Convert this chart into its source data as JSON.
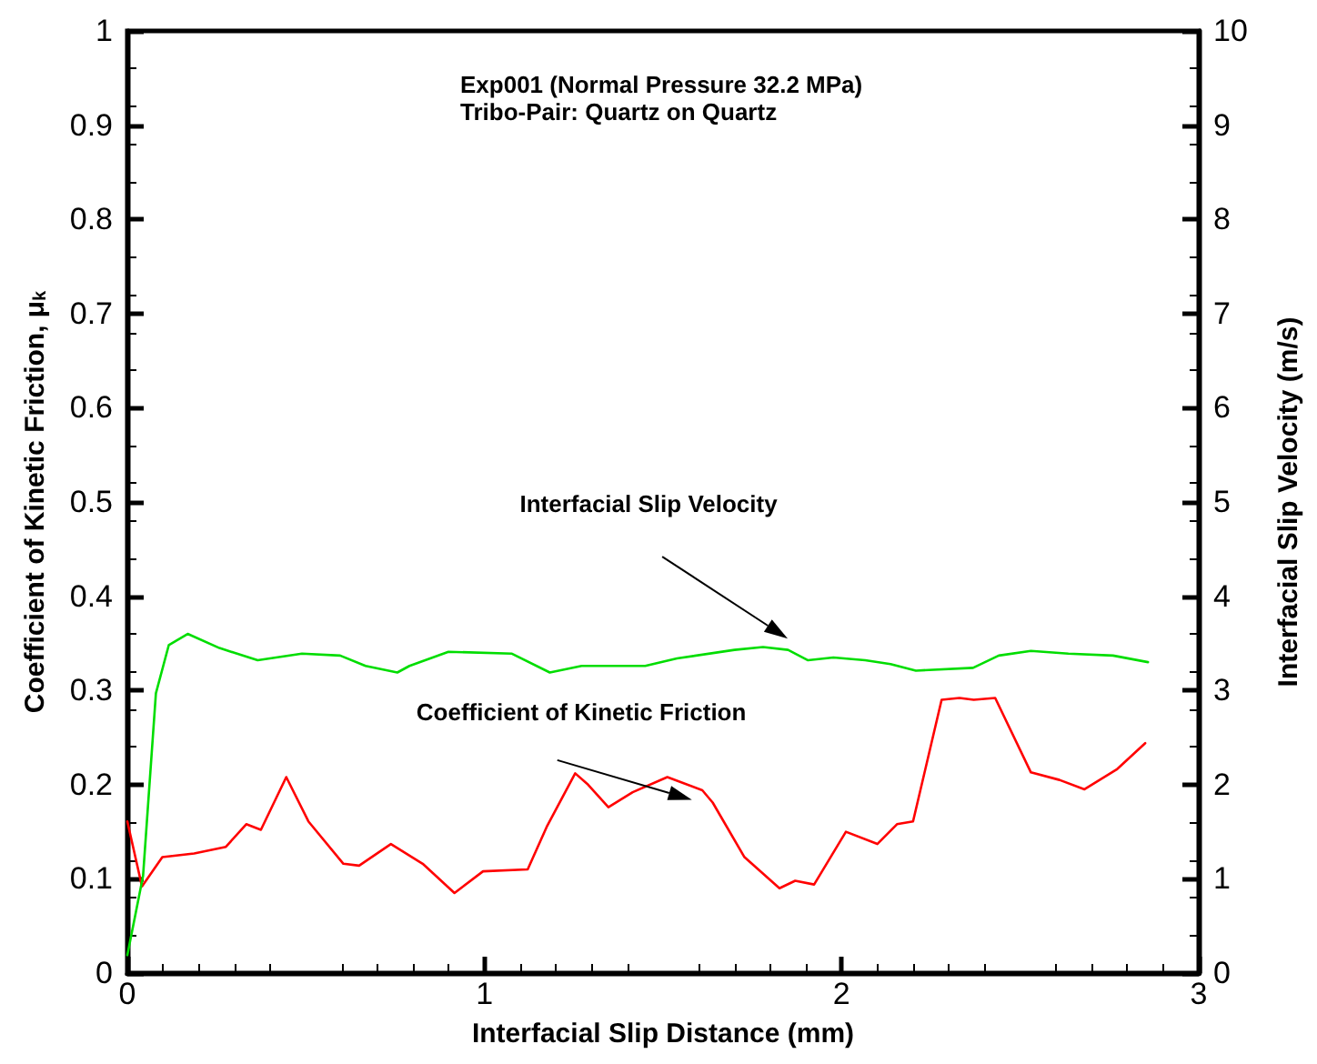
{
  "chart_data": {
    "type": "line",
    "title": "Exp001 (Normal Pressure 32.2 MPa)",
    "subtitle": "Tribo-Pair: Quartz on Quartz",
    "xlabel": "Interfacial Slip Distance (mm)",
    "ylabel": "Coefficient of Kinetic Friction, μ$_{k}$",
    "y2label": "Interfacial Slip Velocity (m/s)",
    "xlim": [
      0,
      3
    ],
    "xticks": [
      0,
      1,
      2,
      3
    ],
    "ylim": [
      0,
      1
    ],
    "yticks": [
      0,
      0.1,
      0.2,
      0.3,
      0.4,
      0.5,
      0.6,
      0.7,
      0.8,
      0.9,
      1
    ],
    "y2lim": [
      0,
      10
    ],
    "y2ticks": [
      0,
      1,
      2,
      3,
      4,
      5,
      6,
      7,
      8,
      9,
      10
    ],
    "grid": false,
    "marker": "none",
    "line_style": "solid",
    "annotations": [
      "Interfacial Slip Velocity",
      "Coefficient of Kinetic Friction"
    ],
    "series": [
      {
        "color": "#ff0000",
        "x": [
          0,
          0.041,
          0.098,
          0.187,
          0.276,
          0.333,
          0.374,
          0.445,
          0.507,
          0.605,
          0.649,
          0.738,
          0.827,
          0.916,
          0.996,
          1.121,
          1.174,
          1.254,
          1.29,
          1.347,
          1.415,
          1.512,
          1.61,
          1.639,
          1.728,
          1.826,
          1.87,
          1.923,
          2.012,
          2.1,
          2.155,
          2.2,
          2.28,
          2.33,
          2.37,
          2.43,
          2.53,
          2.61,
          2.68,
          2.77,
          2.85
        ],
        "values": [
          0.161,
          0.092,
          0.123,
          0.127,
          0.134,
          0.158,
          0.152,
          0.208,
          0.161,
          0.116,
          0.114,
          0.137,
          0.116,
          0.085,
          0.108,
          0.11,
          0.155,
          0.212,
          0.2,
          0.176,
          0.192,
          0.208,
          0.194,
          0.181,
          0.123,
          0.09,
          0.098,
          0.094,
          0.15,
          0.137,
          0.158,
          0.161,
          0.29,
          0.292,
          0.29,
          0.292,
          0.213,
          0.205,
          0.195,
          0.216,
          0.244
        ]
      },
      {
        "color": "#00dd00",
        "axis": "y2",
        "x": [
          0,
          0.044,
          0.08,
          0.116,
          0.169,
          0.258,
          0.365,
          0.489,
          0.596,
          0.667,
          0.756,
          0.79,
          0.899,
          1.077,
          1.183,
          1.272,
          1.45,
          1.539,
          1.7,
          1.78,
          1.85,
          1.906,
          1.977,
          2.066,
          2.137,
          2.208,
          2.368,
          2.44,
          2.53,
          2.635,
          2.76,
          2.858
        ],
        "values": [
          0.19,
          1.03,
          2.97,
          3.48,
          3.6,
          3.45,
          3.32,
          3.39,
          3.37,
          3.26,
          3.19,
          3.26,
          3.41,
          3.39,
          3.19,
          3.26,
          3.26,
          3.34,
          3.43,
          3.46,
          3.43,
          3.32,
          3.35,
          3.32,
          3.28,
          3.21,
          3.24,
          3.37,
          3.42,
          3.39,
          3.37,
          3.3
        ]
      }
    ]
  }
}
